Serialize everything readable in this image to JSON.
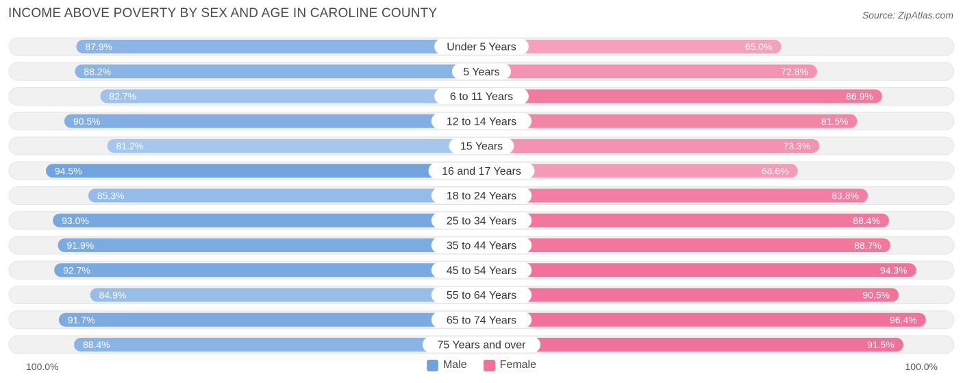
{
  "title": "INCOME ABOVE POVERTY BY SEX AND AGE IN CAROLINE COUNTY",
  "source": "Source: ZipAtlas.com",
  "axis": {
    "left_label": "100.0%",
    "right_label": "100.0%"
  },
  "legend": [
    {
      "name": "Male",
      "color": "#6fa3de"
    },
    {
      "name": "Female",
      "color": "#f07199"
    }
  ],
  "chart_data": {
    "type": "bar",
    "orientation": "horizontal-diverging",
    "title": "INCOME ABOVE POVERTY BY SEX AND AGE IN CAROLINE COUNTY",
    "categories": [
      "Under 5 Years",
      "5 Years",
      "6 to 11 Years",
      "12 to 14 Years",
      "15 Years",
      "16 and 17 Years",
      "18 to 24 Years",
      "25 to 34 Years",
      "35 to 44 Years",
      "45 to 54 Years",
      "55 to 64 Years",
      "65 to 74 Years",
      "75 Years and over"
    ],
    "series": [
      {
        "name": "Male",
        "values": [
          87.9,
          88.2,
          82.7,
          90.5,
          81.2,
          94.5,
          85.3,
          93.0,
          91.9,
          92.7,
          84.9,
          91.7,
          88.4
        ],
        "labels": [
          "87.9%",
          "88.2%",
          "82.7%",
          "90.5%",
          "81.2%",
          "94.5%",
          "85.3%",
          "93.0%",
          "91.9%",
          "92.7%",
          "84.9%",
          "91.7%",
          "88.4%"
        ]
      },
      {
        "name": "Female",
        "values": [
          65.0,
          72.8,
          86.9,
          81.5,
          73.3,
          68.6,
          83.8,
          88.4,
          88.7,
          94.3,
          90.5,
          96.4,
          91.5
        ],
        "labels": [
          "65.0%",
          "72.8%",
          "86.9%",
          "81.5%",
          "73.3%",
          "68.6%",
          "83.8%",
          "88.4%",
          "88.7%",
          "94.3%",
          "90.5%",
          "96.4%",
          "91.5%"
        ]
      }
    ],
    "xlim": [
      0,
      100
    ],
    "legend_position": "bottom-center",
    "colors": {
      "male_strong": "#6fa3de",
      "male_light": "#aac9ee",
      "female_strong": "#f07199",
      "female_light": "#f7a6bf",
      "track": "#f1f1f1"
    }
  }
}
